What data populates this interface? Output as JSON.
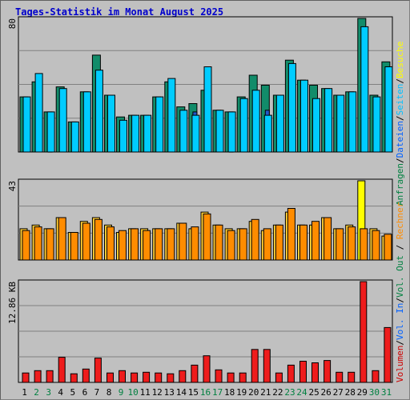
{
  "title": "Tages-Statistik im Monat August 2025",
  "chart_data": [
    {
      "type": "bar",
      "name": "requests-pages-files",
      "categories": [
        "1",
        "2",
        "3",
        "4",
        "5",
        "6",
        "7",
        "8",
        "9",
        "10",
        "11",
        "12",
        "13",
        "14",
        "15",
        "16",
        "17",
        "18",
        "19",
        "20",
        "21",
        "22",
        "23",
        "24",
        "25",
        "26",
        "27",
        "28",
        "29",
        "30",
        "31"
      ],
      "weekend_days": [
        "2",
        "3",
        "9",
        "10",
        "16",
        "17",
        "23",
        "24",
        "30",
        "31"
      ],
      "ymax_label": "80",
      "ymax": 80,
      "right_labels": [
        {
          "text": "Anfragen",
          "color": "#008040"
        },
        {
          "text": "/",
          "color": "#000000"
        },
        {
          "text": "Dateien",
          "color": "#0060ff"
        },
        {
          "text": "/",
          "color": "#000000"
        },
        {
          "text": "Seiten",
          "color": "#00c0ff"
        },
        {
          "text": "/",
          "color": "#000000"
        },
        {
          "text": "Besuche",
          "color": "#ffff00"
        }
      ],
      "series": [
        {
          "name": "Anfragen",
          "color": "#128c6a",
          "values": [
            33,
            42,
            24,
            39,
            18,
            36,
            58,
            34,
            21,
            22,
            22,
            33,
            42,
            27,
            29,
            37,
            25,
            24,
            33,
            46,
            40,
            34,
            55,
            43,
            40,
            38,
            34,
            36,
            80,
            34,
            54
          ]
        },
        {
          "name": "Dateien",
          "color": "#2456c8",
          "values": [
            28,
            25,
            20,
            29,
            14,
            30,
            28,
            24,
            17,
            18,
            18,
            24,
            24,
            22,
            24,
            27,
            19,
            20,
            24,
            28,
            25,
            26,
            33,
            29,
            29,
            27,
            26,
            26,
            36,
            26,
            32
          ]
        },
        {
          "name": "Seiten",
          "color": "#00ccff",
          "values": [
            33,
            47,
            24,
            38,
            18,
            36,
            49,
            34,
            19,
            22,
            22,
            33,
            44,
            25,
            22,
            51,
            25,
            24,
            32,
            37,
            22,
            34,
            53,
            43,
            32,
            38,
            34,
            36,
            75,
            33,
            51
          ]
        }
      ]
    },
    {
      "type": "bar",
      "name": "visits-hosts",
      "ymax_label": "43",
      "ymax": 43,
      "series": [
        {
          "name": "Besuche",
          "color": "#ffcc33",
          "values": [
            17,
            19,
            17,
            23,
            15,
            21,
            23,
            19,
            15,
            17,
            17,
            17,
            17,
            20,
            17,
            26,
            19,
            17,
            17,
            21,
            16,
            19,
            26,
            19,
            19,
            23,
            17,
            19,
            43,
            17,
            13
          ]
        },
        {
          "name": "Rechner",
          "color": "#ff8c00",
          "values": [
            16,
            18,
            17,
            23,
            15,
            20,
            22,
            18,
            16,
            17,
            16,
            17,
            17,
            20,
            18,
            25,
            19,
            16,
            17,
            22,
            17,
            19,
            28,
            19,
            21,
            23,
            17,
            18,
            17,
            16,
            14
          ]
        }
      ]
    },
    {
      "type": "bar",
      "name": "volume",
      "ymax_label": "12.86 KB",
      "ymax": 12.86,
      "right_labels": [
        {
          "text": "Volumen",
          "color": "#cc0000"
        },
        {
          "text": "/",
          "color": "#000000"
        },
        {
          "text": "Vol. In",
          "color": "#0060ff"
        },
        {
          "text": "/",
          "color": "#000000"
        },
        {
          "text": "Vol. Out",
          "color": "#008040"
        }
      ],
      "extra_label": {
        "text": "Rechner",
        "color": "#ff8c00"
      },
      "series": [
        {
          "name": "Volumen",
          "color": "#ee1c1c",
          "values": [
            1.2,
            1.5,
            1.5,
            3.2,
            1.1,
            1.7,
            3.1,
            1.2,
            1.5,
            1.2,
            1.3,
            1.2,
            1.1,
            1.5,
            2.2,
            3.4,
            1.6,
            1.2,
            1.2,
            4.2,
            4.2,
            1.2,
            2.2,
            2.7,
            2.5,
            2.8,
            1.3,
            1.3,
            12.86,
            1.5,
            7.0
          ]
        }
      ]
    }
  ]
}
